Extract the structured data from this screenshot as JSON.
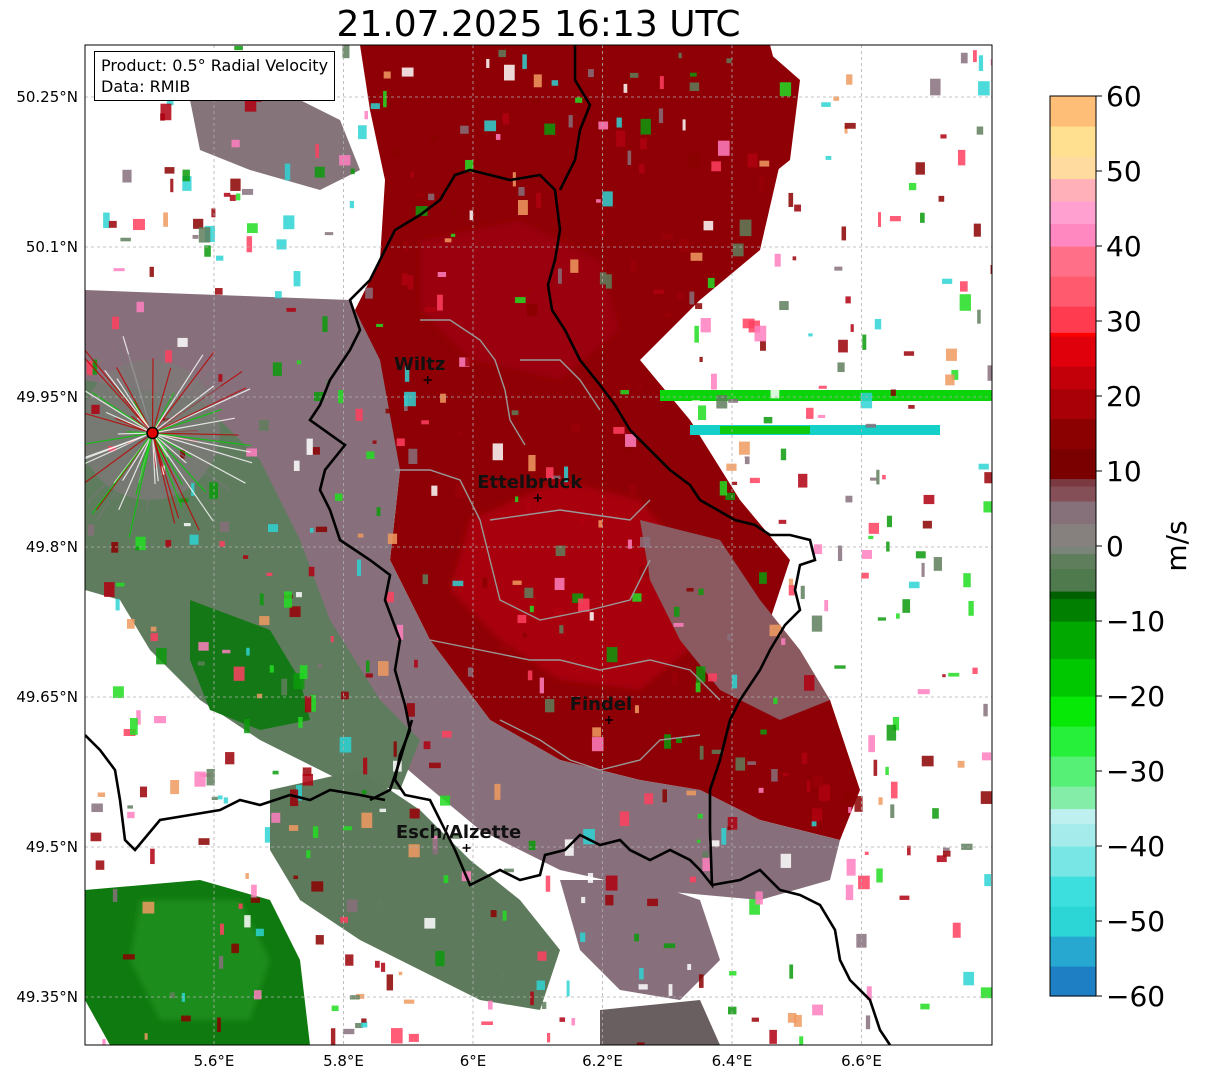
{
  "title": "21.07.2025 16:13 UTC",
  "info": {
    "product": "Product: 0.5° Radial Velocity",
    "data": "Data: RMIB"
  },
  "axes": {
    "lon_ticks": [
      {
        "value": 5.6,
        "label": "5.6°E"
      },
      {
        "value": 5.8,
        "label": "5.8°E"
      },
      {
        "value": 6.0,
        "label": "6°E"
      },
      {
        "value": 6.2,
        "label": "6.2°E"
      },
      {
        "value": 6.4,
        "label": "6.4°E"
      },
      {
        "value": 6.6,
        "label": "6.6°E"
      }
    ],
    "lat_ticks": [
      {
        "value": 50.25,
        "label": "50.25°N"
      },
      {
        "value": 50.1,
        "label": "50.1°N"
      },
      {
        "value": 49.95,
        "label": "49.95°N"
      },
      {
        "value": 49.8,
        "label": "49.8°N"
      },
      {
        "value": 49.65,
        "label": "49.65°N"
      },
      {
        "value": 49.5,
        "label": "49.5°N"
      },
      {
        "value": 49.35,
        "label": "49.35°N"
      }
    ],
    "lon_range": [
      5.4,
      6.8
    ],
    "lat_range": [
      49.3,
      50.3
    ]
  },
  "cities": [
    {
      "name": "Wiltz",
      "lon": 5.93,
      "lat": 49.967
    },
    {
      "name": "Ettelbruck",
      "lon": 6.1,
      "lat": 49.849
    },
    {
      "name": "Findel",
      "lon": 6.21,
      "lat": 49.627
    },
    {
      "name": "Esch/Alzette",
      "lon": 5.99,
      "lat": 49.499
    }
  ],
  "radar_site": {
    "lon": 5.505,
    "lat": 49.914,
    "color": "#e00000"
  },
  "colorbar": {
    "label": "m/s",
    "range": [
      -60,
      60
    ],
    "ticks": [
      {
        "value": 60,
        "label": "60"
      },
      {
        "value": 50,
        "label": "50"
      },
      {
        "value": 40,
        "label": "40"
      },
      {
        "value": 30,
        "label": "30"
      },
      {
        "value": 20,
        "label": "20"
      },
      {
        "value": 10,
        "label": "10"
      },
      {
        "value": 0,
        "label": "0"
      },
      {
        "value": -10,
        "label": "−10"
      },
      {
        "value": -20,
        "label": "−20"
      },
      {
        "value": -30,
        "label": "−30"
      },
      {
        "value": -40,
        "label": "−40"
      },
      {
        "value": -50,
        "label": "−50"
      },
      {
        "value": -60,
        "label": "−60"
      }
    ]
  },
  "colors": {
    "strong_outbound": "#8b0000",
    "outbound": "#b00008",
    "near_zero": "#86707a",
    "inbound_grey": "#5f7e5c",
    "inbound": "#137a13"
  }
}
